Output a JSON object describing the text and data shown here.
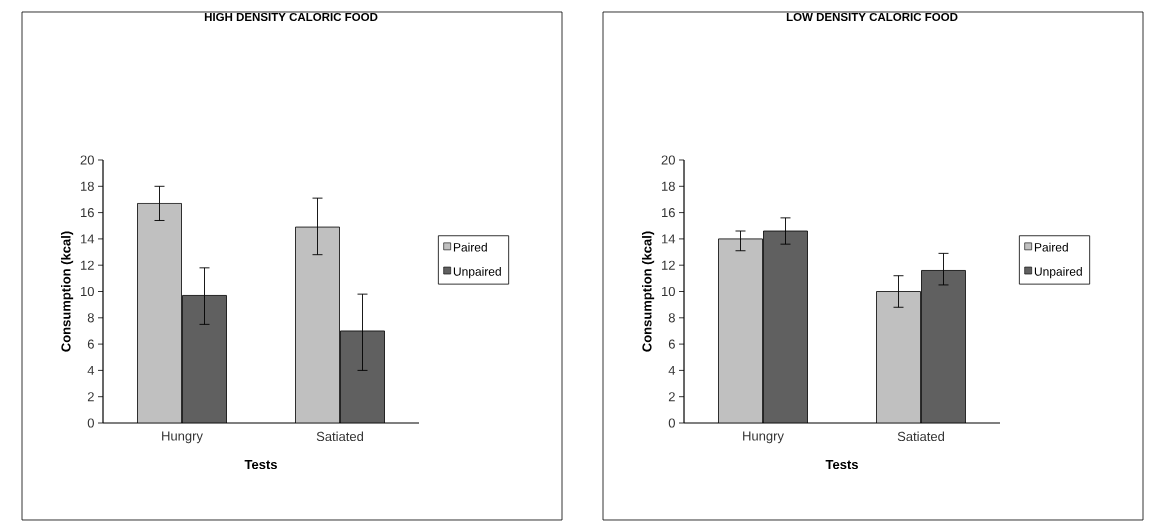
{
  "chart_data": [
    {
      "type": "bar",
      "title": "HIGH DENSITY CALORIC FOOD",
      "xlabel": "Tests",
      "ylabel": "Consumption (kcal)",
      "categories": [
        "Hungry",
        "Satiated"
      ],
      "ylim": [
        0,
        20
      ],
      "yticks": [
        0,
        2,
        4,
        6,
        8,
        10,
        12,
        14,
        16,
        18,
        20
      ],
      "legend": "right",
      "series": [
        {
          "name": "Paired",
          "color": "#c0c0c0",
          "values": [
            16.7,
            14.9
          ],
          "errors": [
            [
              15.4,
              18.0
            ],
            [
              12.8,
              17.1
            ]
          ]
        },
        {
          "name": "Unpaired",
          "color": "#606060",
          "values": [
            9.7,
            7.0
          ],
          "errors": [
            [
              7.5,
              11.8
            ],
            [
              4.0,
              9.8
            ]
          ]
        }
      ]
    },
    {
      "type": "bar",
      "title": "LOW DENSITY CALORIC FOOD",
      "xlabel": "Tests",
      "ylabel": "Consumption (kcal)",
      "categories": [
        "Hungry",
        "Satiated"
      ],
      "ylim": [
        0,
        20
      ],
      "yticks": [
        0,
        2,
        4,
        6,
        8,
        10,
        12,
        14,
        16,
        18,
        20
      ],
      "legend": "right",
      "series": [
        {
          "name": "Paired",
          "color": "#c0c0c0",
          "values": [
            14.0,
            10.0
          ],
          "errors": [
            [
              13.1,
              14.6
            ],
            [
              8.8,
              11.2
            ]
          ]
        },
        {
          "name": "Unpaired",
          "color": "#606060",
          "values": [
            14.6,
            11.6
          ],
          "errors": [
            [
              13.6,
              15.6
            ],
            [
              10.5,
              12.9
            ]
          ]
        }
      ]
    }
  ]
}
